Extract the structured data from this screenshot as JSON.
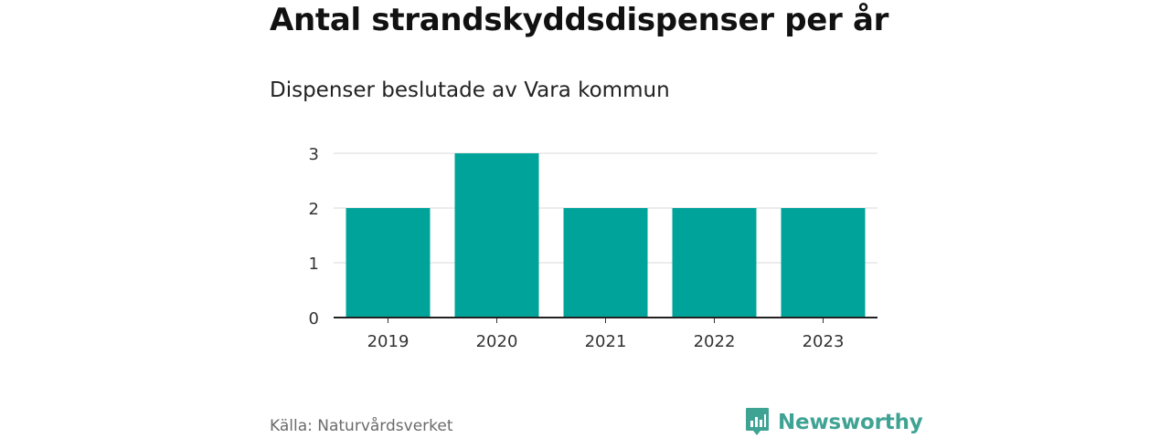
{
  "title": "Antal strandskyddsdispenser per år",
  "subtitle": "Dispenser beslutade av Vara kommun",
  "source": "Källa: Naturvårdsverket",
  "brand": {
    "name": "Newsworthy",
    "icon": "newsworthy-logo-icon",
    "color": "#3fa394"
  },
  "chart_data": {
    "type": "bar",
    "categories": [
      "2019",
      "2020",
      "2021",
      "2022",
      "2023"
    ],
    "values": [
      2,
      3,
      2,
      2,
      2
    ],
    "ylim": [
      0,
      3
    ],
    "yticks": [
      0,
      1,
      2,
      3
    ],
    "grid": true,
    "bar_color": "#00a399"
  }
}
